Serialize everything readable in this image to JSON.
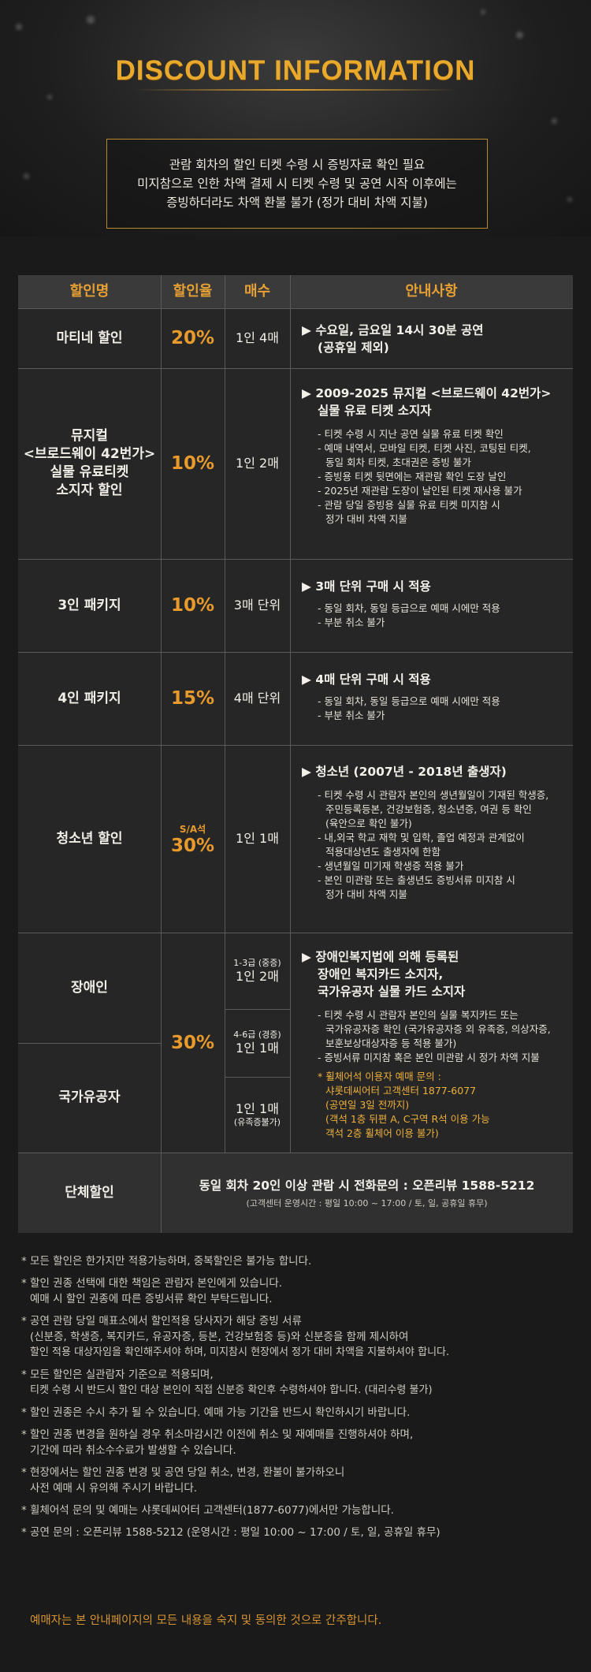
{
  "header": {
    "title": "DISCOUNT INFORMATION",
    "notice": [
      "관람 회차의 할인 티켓 수령 시 증빙자료 확인 필요",
      "미지참으로 인한 차액 결제 시 티켓 수령 및 공연 시작 이후에는",
      "증빙하더라도 차액 환불 불가 (정가 대비 차액 지불)"
    ]
  },
  "table": {
    "columns": [
      "할인명",
      "할인율",
      "매수",
      "안내사항"
    ],
    "rows": [
      {
        "name": [
          "마티네 할인"
        ],
        "rate": "20%",
        "count": "1인 4매",
        "head": [
          "▶ 수요일, 금요일 14시 30분 공연",
          "(공휴일 제외)"
        ],
        "items": []
      },
      {
        "name": [
          "뮤지컬",
          "<브로드웨이 42번가>",
          "실물 유료티켓",
          "소지자 할인"
        ],
        "rate": "10%",
        "count": "1인 2매",
        "head": [
          "▶ 2009-2025 뮤지컬 <브로드웨이 42번가>",
          "실물 유료 티켓 소지자"
        ],
        "items": [
          "- 티켓 수령 시 지난 공연 실물 유료 티켓 확인",
          "- 예매 내역서, 모바일 티켓, 티켓 사진, 코팅된 티켓,",
          "동일 회차 티켓, 초대권은 증빙 불가",
          "- 증빙용 티켓 뒷면에는 재관람 확인 도장 날인",
          "- 2025년 재관람 도장이 날인된 티켓 재사용 불가",
          "- 관람 당일 증빙용 실물 유료 티켓 미지참 시",
          "정가 대비 차액 지불"
        ]
      },
      {
        "name": [
          "3인 패키지"
        ],
        "rate": "10%",
        "count": "3매 단위",
        "head": [
          "▶ 3매 단위 구매 시 적용"
        ],
        "items": [
          "- 동일 회차, 동일 등급으로 예매 시에만 적용",
          "- 부분 취소 불가"
        ]
      },
      {
        "name": [
          "4인 패키지"
        ],
        "rate": "15%",
        "count": "4매 단위",
        "head": [
          "▶ 4매 단위 구매 시 적용"
        ],
        "items": [
          "- 동일 회차, 동일 등급으로 예매 시에만 적용",
          "- 부분 취소 불가"
        ]
      },
      {
        "name": [
          "청소년 할인"
        ],
        "rate_prefix": "S/A석",
        "rate": "30%",
        "count": "1인 1매",
        "head": [
          "▶ 청소년 (2007년 - 2018년 출생자)"
        ],
        "items": [
          "- 티켓 수령 시 관람자 본인의 생년월일이 기재된 학생증,",
          "주민등록등본, 건강보험증, 청소년증, 여권 등 확인",
          "(육안으로 확인 불가)",
          "- 내,외국 학교 재학 및 입학, 졸업 예정과 관계없이",
          "적용대상년도 출생자에 한함",
          "- 생년월일 미기재 학생증 적용 불가",
          "- 본인 미관람 또는 출생년도 증빙서류 미지참 시",
          "정가 대비 차액 지불"
        ]
      }
    ],
    "disabled": {
      "name_1": "장애인",
      "name_2": "국가유공자",
      "rate": "30%",
      "count_1_grade": "1-3급 (중증)",
      "count_1": "1인 2매",
      "count_2_grade": "4-6급 (경증)",
      "count_2": "1인 1매",
      "count_3": "1인 1매",
      "count_3_note": "(유족증불가)",
      "head": [
        "▶ 장애인복지법에 의해 등록된",
        "장애인 복지카드 소지자,",
        "국가유공자 실물 카드 소지자"
      ],
      "items": [
        "- 티켓 수령 시 관람자 본인의 실물 복지카드 또는",
        "국가유공자증 확인 (국가유공자증 외 유족증, 의상자증,",
        "보훈보상대상자증 등 적용 불가)",
        "- 증빙서류 미지참 혹은 본인 미관람 시 정가 차액 지불"
      ],
      "gold": [
        "* 휠체어석 이용자 예매 문의 :",
        "샤롯데씨어터 고객센터 1877-6077",
        "(공연일 3일 전까지)",
        "(객석 1층 뒤편 A, C구역 R석 이용 가능",
        "객석 2층 휠체어 이용 불가)"
      ]
    },
    "group": {
      "name": "단체할인",
      "line1": "동일 회차 20인 이상 관람 시 전화문의 : 오픈리뷰 1588-5212",
      "line2": "(고객센터 운영시간 : 평일 10:00 ~ 17:00 / 토, 일, 공휴일 휴무)"
    }
  },
  "notes": [
    [
      "* 모든 할인은 한가지만 적용가능하며, 중복할인은 불가능 합니다."
    ],
    [
      "* 할인 권종 선택에 대한 책임은 관람자 본인에게 있습니다.",
      "예매 시 할인 권종에 따른 증빙서류 확인 부탁드립니다."
    ],
    [
      "* 공연 관람 당일 매표소에서 할인적용 당사자가 해당 증빙 서류",
      "(신분증, 학생증, 복지카드, 유공자증, 등본, 건강보험증 등)와 신분증을 함께 제시하여",
      "할인 적용 대상자임을 확인해주셔야 하며, 미지참시 현장에서 정가 대비 차액을 지불하셔야 합니다."
    ],
    [
      "* 모든 할인은 실관람자 기준으로 적용되며,",
      "티켓 수령 시 반드시 할인 대상 본인이 직접 신분증 확인후 수령하셔야 합니다. (대리수령 불가)"
    ],
    [
      "* 할인 권종은 수시 추가 될 수 있습니다. 예매 가능 기간을 반드시 확인하시기 바랍니다."
    ],
    [
      "* 할인 권종 변경을 원하실 경우 취소마감시간 이전에 취소 및 재예매를 진행하셔야 하며,",
      "기간에 따라 취소수수료가 발생할 수 있습니다."
    ],
    [
      "* 현장에서는 할인 권종 변경 및 공연 당일 취소, 변경, 환불이 불가하오니",
      "사전 예매 시 유의해 주시기 바랍니다."
    ],
    [
      "* 휠체어석 문의 및 예매는 샤롯데씨어터 고객센터(1877-6077)에서만 가능합니다."
    ],
    [
      "* 공연 문의 : 오픈리뷰 1588-5212 (운영시간 : 평일 10:00 ~ 17:00 / 토, 일, 공휴일 휴무)"
    ]
  ],
  "final_notice": "예매자는 본 안내페이지의 모든 내용을 숙지 및 동의한 것으로 간주합니다.",
  "colors": {
    "accent": "#e89a2c",
    "border": "#b8892f",
    "background": "#1a1a1a"
  }
}
